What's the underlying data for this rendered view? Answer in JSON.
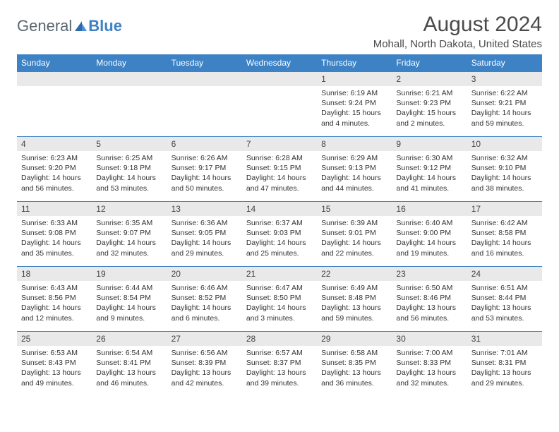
{
  "brand": {
    "part1": "General",
    "part2": "Blue"
  },
  "title": "August 2024",
  "location": "Mohall, North Dakota, United States",
  "colors": {
    "header_bg": "#3d82c4",
    "header_text": "#ffffff",
    "daynum_bg": "#e9e9e9",
    "row_border": "#3d82c4",
    "text": "#333333",
    "title_text": "#4a4a4a",
    "logo_gray": "#5b6670",
    "logo_blue": "#3d82c4"
  },
  "day_headers": [
    "Sunday",
    "Monday",
    "Tuesday",
    "Wednesday",
    "Thursday",
    "Friday",
    "Saturday"
  ],
  "labels": {
    "sunrise": "Sunrise:",
    "sunset": "Sunset:",
    "daylight": "Daylight:"
  },
  "weeks": [
    [
      null,
      null,
      null,
      null,
      {
        "n": "1",
        "sunrise": "6:19 AM",
        "sunset": "9:24 PM",
        "daylight": "15 hours and 4 minutes."
      },
      {
        "n": "2",
        "sunrise": "6:21 AM",
        "sunset": "9:23 PM",
        "daylight": "15 hours and 2 minutes."
      },
      {
        "n": "3",
        "sunrise": "6:22 AM",
        "sunset": "9:21 PM",
        "daylight": "14 hours and 59 minutes."
      }
    ],
    [
      {
        "n": "4",
        "sunrise": "6:23 AM",
        "sunset": "9:20 PM",
        "daylight": "14 hours and 56 minutes."
      },
      {
        "n": "5",
        "sunrise": "6:25 AM",
        "sunset": "9:18 PM",
        "daylight": "14 hours and 53 minutes."
      },
      {
        "n": "6",
        "sunrise": "6:26 AM",
        "sunset": "9:17 PM",
        "daylight": "14 hours and 50 minutes."
      },
      {
        "n": "7",
        "sunrise": "6:28 AM",
        "sunset": "9:15 PM",
        "daylight": "14 hours and 47 minutes."
      },
      {
        "n": "8",
        "sunrise": "6:29 AM",
        "sunset": "9:13 PM",
        "daylight": "14 hours and 44 minutes."
      },
      {
        "n": "9",
        "sunrise": "6:30 AM",
        "sunset": "9:12 PM",
        "daylight": "14 hours and 41 minutes."
      },
      {
        "n": "10",
        "sunrise": "6:32 AM",
        "sunset": "9:10 PM",
        "daylight": "14 hours and 38 minutes."
      }
    ],
    [
      {
        "n": "11",
        "sunrise": "6:33 AM",
        "sunset": "9:08 PM",
        "daylight": "14 hours and 35 minutes."
      },
      {
        "n": "12",
        "sunrise": "6:35 AM",
        "sunset": "9:07 PM",
        "daylight": "14 hours and 32 minutes."
      },
      {
        "n": "13",
        "sunrise": "6:36 AM",
        "sunset": "9:05 PM",
        "daylight": "14 hours and 29 minutes."
      },
      {
        "n": "14",
        "sunrise": "6:37 AM",
        "sunset": "9:03 PM",
        "daylight": "14 hours and 25 minutes."
      },
      {
        "n": "15",
        "sunrise": "6:39 AM",
        "sunset": "9:01 PM",
        "daylight": "14 hours and 22 minutes."
      },
      {
        "n": "16",
        "sunrise": "6:40 AM",
        "sunset": "9:00 PM",
        "daylight": "14 hours and 19 minutes."
      },
      {
        "n": "17",
        "sunrise": "6:42 AM",
        "sunset": "8:58 PM",
        "daylight": "14 hours and 16 minutes."
      }
    ],
    [
      {
        "n": "18",
        "sunrise": "6:43 AM",
        "sunset": "8:56 PM",
        "daylight": "14 hours and 12 minutes."
      },
      {
        "n": "19",
        "sunrise": "6:44 AM",
        "sunset": "8:54 PM",
        "daylight": "14 hours and 9 minutes."
      },
      {
        "n": "20",
        "sunrise": "6:46 AM",
        "sunset": "8:52 PM",
        "daylight": "14 hours and 6 minutes."
      },
      {
        "n": "21",
        "sunrise": "6:47 AM",
        "sunset": "8:50 PM",
        "daylight": "14 hours and 3 minutes."
      },
      {
        "n": "22",
        "sunrise": "6:49 AM",
        "sunset": "8:48 PM",
        "daylight": "13 hours and 59 minutes."
      },
      {
        "n": "23",
        "sunrise": "6:50 AM",
        "sunset": "8:46 PM",
        "daylight": "13 hours and 56 minutes."
      },
      {
        "n": "24",
        "sunrise": "6:51 AM",
        "sunset": "8:44 PM",
        "daylight": "13 hours and 53 minutes."
      }
    ],
    [
      {
        "n": "25",
        "sunrise": "6:53 AM",
        "sunset": "8:43 PM",
        "daylight": "13 hours and 49 minutes."
      },
      {
        "n": "26",
        "sunrise": "6:54 AM",
        "sunset": "8:41 PM",
        "daylight": "13 hours and 46 minutes."
      },
      {
        "n": "27",
        "sunrise": "6:56 AM",
        "sunset": "8:39 PM",
        "daylight": "13 hours and 42 minutes."
      },
      {
        "n": "28",
        "sunrise": "6:57 AM",
        "sunset": "8:37 PM",
        "daylight": "13 hours and 39 minutes."
      },
      {
        "n": "29",
        "sunrise": "6:58 AM",
        "sunset": "8:35 PM",
        "daylight": "13 hours and 36 minutes."
      },
      {
        "n": "30",
        "sunrise": "7:00 AM",
        "sunset": "8:33 PM",
        "daylight": "13 hours and 32 minutes."
      },
      {
        "n": "31",
        "sunrise": "7:01 AM",
        "sunset": "8:31 PM",
        "daylight": "13 hours and 29 minutes."
      }
    ]
  ]
}
